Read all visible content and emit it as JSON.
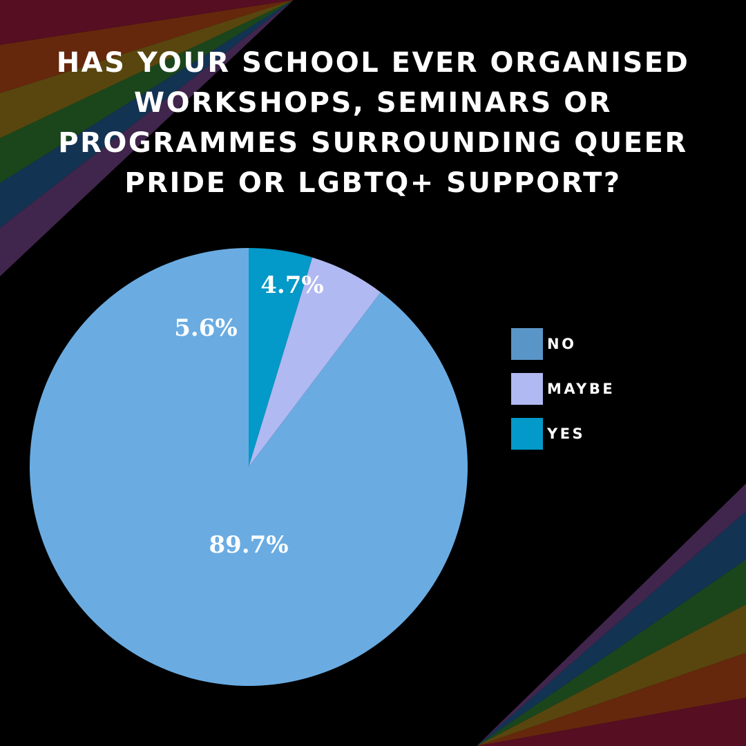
{
  "title": "HAS YOUR SCHOOL EVER ORGANISED WORKSHOPS, SEMINARS OR PROGRAMMES SURROUNDING QUEER PRIDE OR LGBTQ+ SUPPORT?",
  "colors": {
    "background": "#000000",
    "no": "#6aace2",
    "no_swatch": "#5a95c8",
    "maybe": "#b0b9f1",
    "yes": "#0399c8",
    "rainbow": [
      "#5b0f24",
      "#6a2a0d",
      "#5e4a10",
      "#1c4a1e",
      "#143657",
      "#432750"
    ]
  },
  "chart_data": {
    "type": "pie",
    "slices": [
      {
        "key": "yes",
        "label": "YES",
        "value": 4.7,
        "value_label": "4.7%"
      },
      {
        "key": "maybe",
        "label": "MAYBE",
        "value": 5.6,
        "value_label": "5.6%"
      },
      {
        "key": "no",
        "label": "NO",
        "value": 89.7,
        "value_label": "89.7%"
      }
    ],
    "legend": {
      "placement": "right",
      "entries": [
        "NO",
        "MAYBE",
        "YES"
      ]
    }
  }
}
